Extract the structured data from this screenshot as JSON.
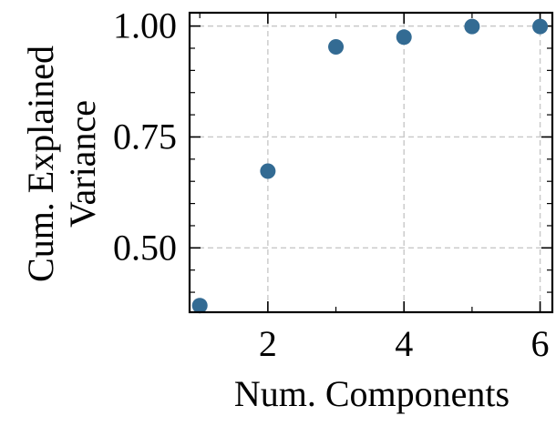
{
  "chart_data": {
    "type": "scatter",
    "title": "",
    "xlabel": "Num. Components",
    "ylabel_lines": [
      "Cum. Explained",
      "Variance"
    ],
    "x": [
      1,
      2,
      3,
      4,
      5,
      6
    ],
    "y": [
      0.37,
      0.673,
      0.953,
      0.975,
      0.999,
      0.999
    ],
    "xlim": [
      0.85,
      6.18
    ],
    "ylim": [
      0.355,
      1.03
    ],
    "xticks": [
      2,
      4,
      6
    ],
    "xtick_labels": [
      "2",
      "4",
      "6"
    ],
    "xminor": [
      1,
      3,
      5
    ],
    "yticks": [
      0.5,
      0.75,
      1.0
    ],
    "ytick_labels": [
      "0.50",
      "0.75",
      "1.00"
    ],
    "yminor": [
      0.4,
      0.45,
      0.55,
      0.6,
      0.65,
      0.7,
      0.8,
      0.85,
      0.9,
      0.95
    ],
    "grid": true,
    "marker_color": "#336b93",
    "grid_color": "#c8c8c8"
  }
}
